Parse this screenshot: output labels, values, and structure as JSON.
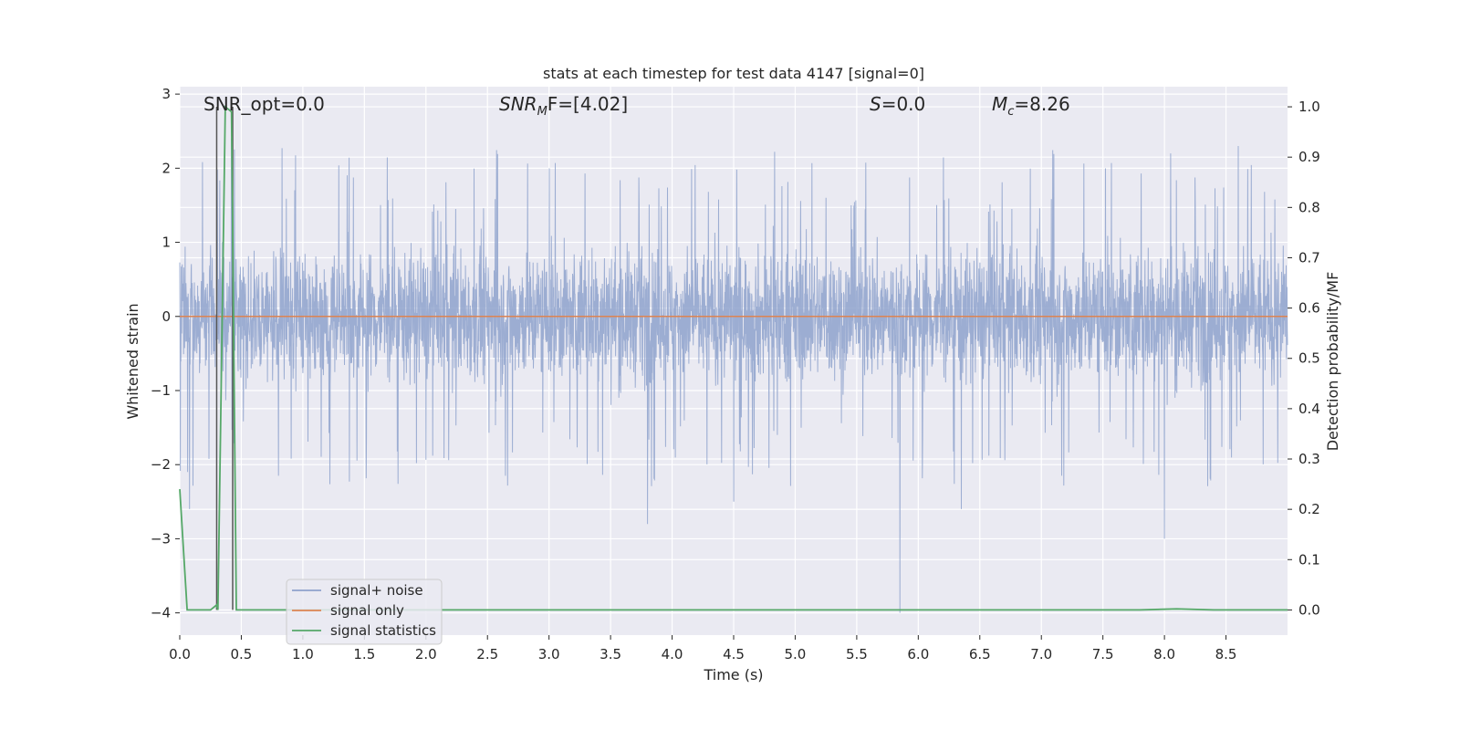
{
  "chart_data": {
    "type": "line",
    "title": "stats at each timestep for test data 4147 [signal=0]",
    "xlabel": "Time (s)",
    "ylabel_left": "Whitened strain",
    "ylabel_right": "Detection probability/MF",
    "xlim": [
      0.0,
      9.0
    ],
    "ylim_left": [
      -4.3,
      3.1
    ],
    "ylim_right": [
      -0.05,
      1.04
    ],
    "x_ticks": [
      0.0,
      0.5,
      1.0,
      1.5,
      2.0,
      2.5,
      3.0,
      3.5,
      4.0,
      4.5,
      5.0,
      5.5,
      6.0,
      6.5,
      7.0,
      7.5,
      8.0,
      8.5
    ],
    "x_tick_labels": [
      "0.0",
      "0.5",
      "1.0",
      "1.5",
      "2.0",
      "2.5",
      "3.0",
      "3.5",
      "4.0",
      "4.5",
      "5.0",
      "5.5",
      "6.0",
      "6.5",
      "7.0",
      "7.5",
      "8.0",
      "8.5"
    ],
    "y_left_ticks": [
      3,
      2,
      1,
      0,
      -1,
      -2,
      -3,
      -4
    ],
    "y_left_tick_labels": [
      "3",
      "2",
      "1",
      "0",
      "−1",
      "−2",
      "−3",
      "−4"
    ],
    "y_right_ticks": [
      1.0,
      0.9,
      0.8,
      0.7,
      0.6,
      0.5,
      0.4,
      0.3,
      0.2,
      0.1,
      0.0
    ],
    "y_right_tick_labels": [
      "1.0",
      "0.9",
      "0.8",
      "0.7",
      "0.6",
      "0.5",
      "0.4",
      "0.3",
      "0.2",
      "0.1",
      "0.0"
    ],
    "grid": true,
    "legend_position": "lower-left",
    "annotations": {
      "snr_opt": "SNR_opt=0.0",
      "snr_mf_main": "SNR",
      "snr_mf_sub": "M",
      "snr_mf_rest": "F=[4.02]",
      "s_main": "S",
      "s_rest": "=0.0",
      "mc_main": "M",
      "mc_sub": "c",
      "mc_rest": "=8.26"
    },
    "vlines_x": [
      0.3,
      0.43
    ],
    "series": [
      {
        "name": "signal+ noise",
        "axis": "left",
        "color": "#8ea2cc",
        "kind": "noise",
        "n_samples": 4096,
        "envelope": [
          -1.5,
          1.5
        ],
        "notable_spikes": [
          {
            "x": 0.08,
            "y": -2.6
          },
          {
            "x": 0.42,
            "y": 2.4
          },
          {
            "x": 3.8,
            "y": -2.8
          },
          {
            "x": 4.5,
            "y": -2.5
          },
          {
            "x": 5.85,
            "y": -4.0
          },
          {
            "x": 6.35,
            "y": 2.7
          },
          {
            "x": 6.35,
            "y": -2.6
          },
          {
            "x": 8.0,
            "y": -3.0
          },
          {
            "x": 8.05,
            "y": 2.2
          },
          {
            "x": 8.6,
            "y": 2.3
          }
        ]
      },
      {
        "name": "signal only",
        "axis": "left",
        "color": "#dd8452",
        "x": [
          0.0,
          9.0
        ],
        "y": [
          0.0,
          0.0
        ]
      },
      {
        "name": "signal statistics",
        "axis": "right",
        "color": "#55a868",
        "x": [
          0.0,
          0.06,
          0.25,
          0.3,
          0.31,
          0.37,
          0.42,
          0.46,
          0.5,
          1.0,
          2.0,
          3.0,
          4.0,
          5.0,
          6.0,
          7.0,
          7.8,
          8.1,
          8.4,
          9.0
        ],
        "y": [
          0.24,
          0.0,
          0.0,
          0.01,
          0.0,
          1.0,
          0.99,
          0.0,
          0.0,
          0.0,
          0.0,
          0.0,
          0.0,
          0.0,
          0.0,
          0.0,
          0.0,
          0.002,
          0.0,
          0.0
        ]
      }
    ]
  }
}
